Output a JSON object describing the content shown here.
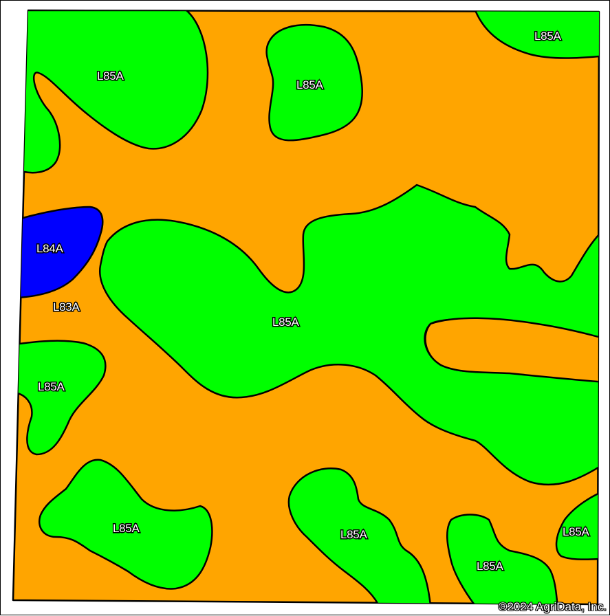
{
  "map": {
    "colors": {
      "L83A": "#ffa500",
      "L84A": "#0000ff",
      "L85A": "#00ff00",
      "outline": "#000000"
    },
    "labels": [
      "L85A",
      "L85A",
      "L85A",
      "L84A",
      "L83A",
      "L85A",
      "L85A",
      "L85A",
      "L85A",
      "L85A",
      "L85A"
    ],
    "copyright": "©2024 AgriData, Inc."
  }
}
